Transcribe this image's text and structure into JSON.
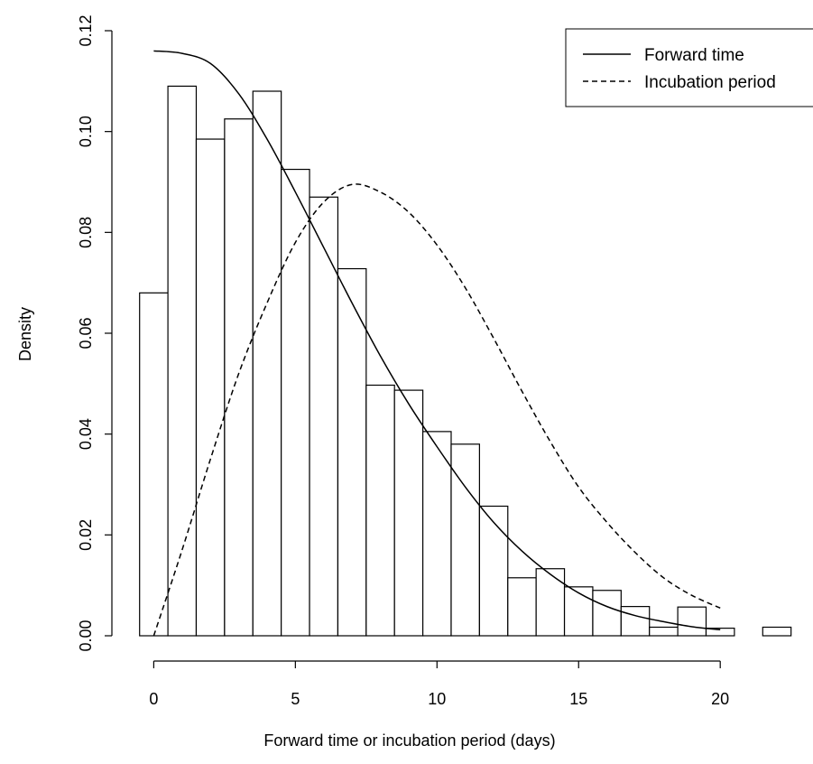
{
  "chart_data": {
    "type": "bar",
    "xlabel": "Forward time or incubation period (days)",
    "ylabel": "Density",
    "xlim": [
      -0.6,
      22.5
    ],
    "ylim": [
      0,
      0.12
    ],
    "x_ticks": [
      0,
      5,
      10,
      15,
      20
    ],
    "y_ticks": [
      0.0,
      0.02,
      0.04,
      0.06,
      0.08,
      0.1,
      0.12
    ],
    "y_tick_labels": [
      "0.00",
      "0.02",
      "0.04",
      "0.06",
      "0.08",
      "0.10",
      "0.12"
    ],
    "grid": false,
    "legend_position": "top-right",
    "histogram": {
      "bin_edges": [
        -0.5,
        0.5,
        1.5,
        2.5,
        3.5,
        4.5,
        5.5,
        6.5,
        7.5,
        8.5,
        9.5,
        10.5,
        11.5,
        12.5,
        13.5,
        14.5,
        15.5,
        16.5,
        17.5,
        18.5,
        19.5,
        20.5,
        21.5,
        22.5
      ],
      "densities": [
        0.068,
        0.109,
        0.0985,
        0.1025,
        0.108,
        0.0925,
        0.087,
        0.0728,
        0.0497,
        0.0487,
        0.0405,
        0.038,
        0.0257,
        0.0115,
        0.0133,
        0.0097,
        0.009,
        0.0058,
        0.0017,
        0.0057,
        0.0015,
        0.0,
        0.0017
      ]
    },
    "series": [
      {
        "name": "Forward time",
        "style": "solid",
        "x": [
          0,
          1,
          2,
          3,
          4,
          5,
          6,
          7,
          8,
          9,
          10,
          11,
          12,
          13,
          14,
          15,
          16,
          17,
          18,
          19,
          20
        ],
        "y": [
          0.116,
          0.1155,
          0.1135,
          0.1075,
          0.0985,
          0.088,
          0.077,
          0.066,
          0.0555,
          0.046,
          0.0375,
          0.0295,
          0.0225,
          0.0168,
          0.0122,
          0.0085,
          0.0058,
          0.004,
          0.0028,
          0.0018,
          0.0012
        ]
      },
      {
        "name": "Incubation period",
        "style": "dashed",
        "x": [
          0,
          1,
          2,
          3,
          4,
          5,
          6,
          7,
          8,
          9,
          10,
          11,
          12,
          13,
          14,
          15,
          16,
          17,
          18,
          19,
          20
        ],
        "y": [
          0.0,
          0.017,
          0.035,
          0.052,
          0.066,
          0.078,
          0.086,
          0.0895,
          0.088,
          0.084,
          0.0775,
          0.069,
          0.059,
          0.0485,
          0.0385,
          0.0295,
          0.0225,
          0.0165,
          0.0115,
          0.008,
          0.0055
        ]
      }
    ]
  }
}
